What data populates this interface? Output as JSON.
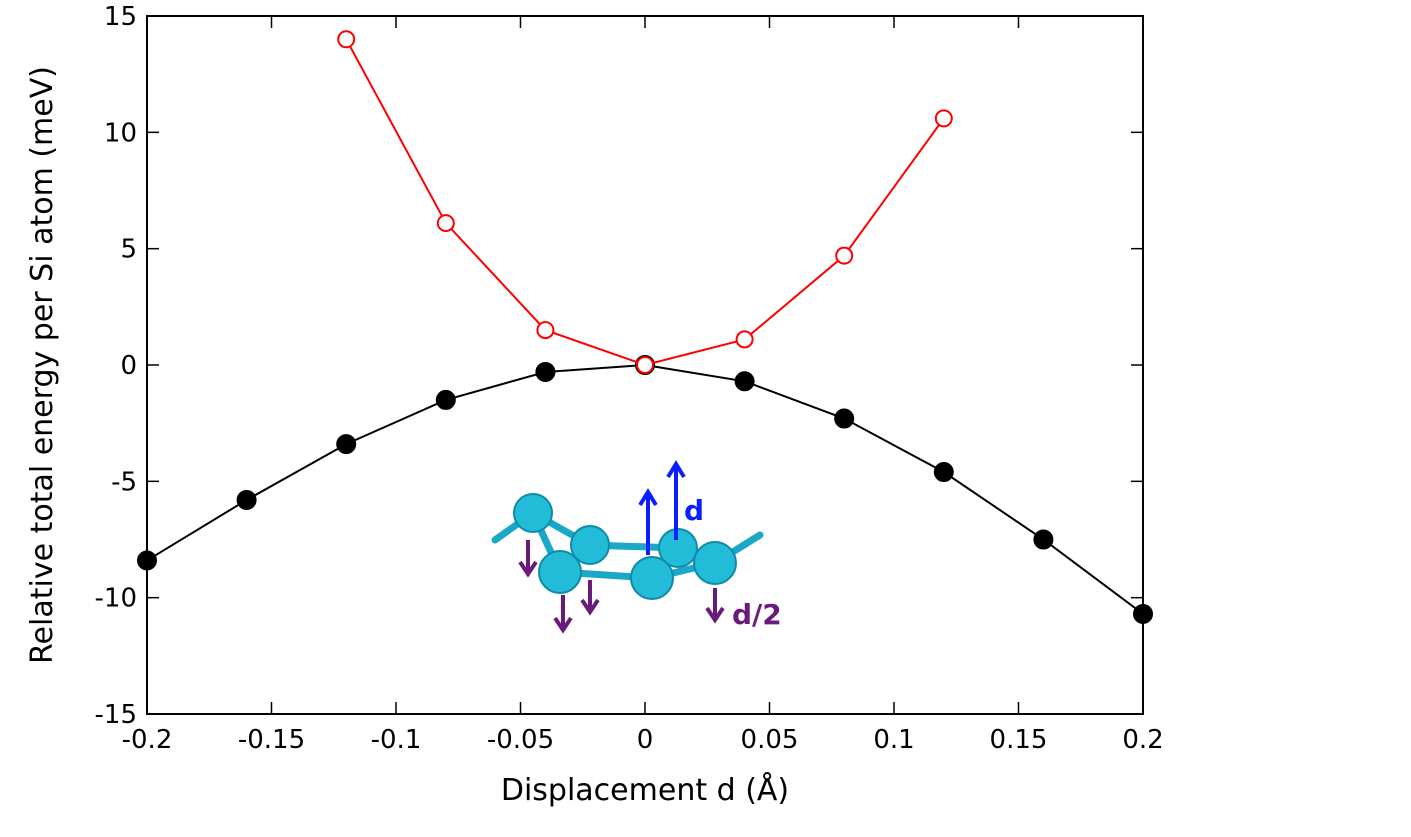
{
  "chart_data": {
    "type": "line",
    "xlabel": "Displacement d (Å)",
    "ylabel": "Relative total energy per Si atom (meV)",
    "series": [
      {
        "color": "#000000",
        "marker": "filled",
        "x": [
          -0.2,
          -0.16,
          -0.12,
          -0.08,
          -0.04,
          0,
          0.04,
          0.08,
          0.12,
          0.16,
          0.2
        ],
        "values": [
          -8.4,
          -5.8,
          -3.4,
          -1.5,
          -0.3,
          0,
          -0.7,
          -2.3,
          -4.6,
          -7.5,
          -10.7
        ]
      },
      {
        "color": "#ff0000",
        "marker": "open",
        "x": [
          -0.12,
          -0.08,
          -0.04,
          0,
          0.04,
          0.08,
          0.12
        ],
        "values": [
          14.0,
          6.1,
          1.5,
          0,
          1.1,
          4.7,
          10.6
        ]
      }
    ],
    "xlim": [
      -0.2,
      0.2
    ],
    "xticks": [
      -0.2,
      -0.15,
      -0.1,
      -0.05,
      0,
      0.05,
      0.1,
      0.15,
      0.2
    ],
    "ylim": [
      -15,
      15
    ],
    "yticks": [
      -15,
      -10,
      -5,
      0,
      5,
      10,
      15
    ],
    "annotations": [
      "d",
      "d/2"
    ]
  }
}
